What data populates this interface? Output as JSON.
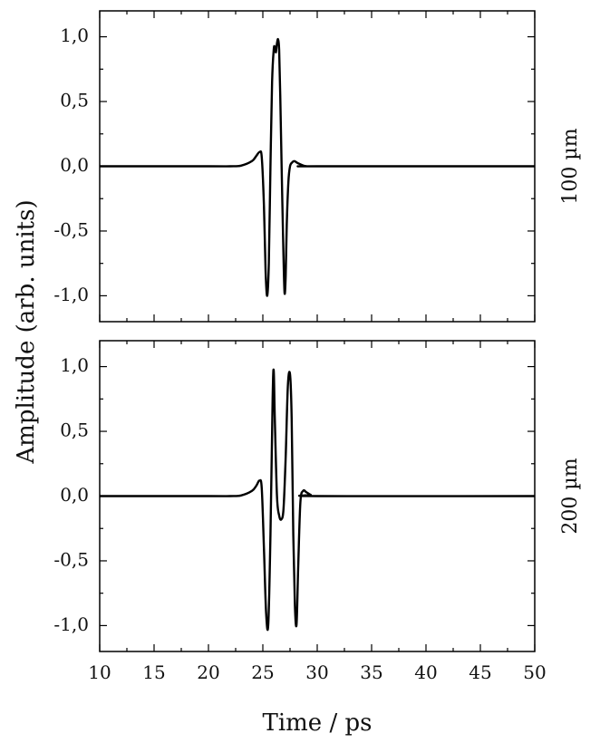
{
  "chart_data": [
    {
      "type": "line",
      "title": "",
      "side_label": "100 µm",
      "xlim": [
        10,
        50
      ],
      "ylim": [
        -1.2,
        1.2
      ],
      "xticks": [
        10,
        15,
        20,
        25,
        30,
        35,
        40,
        45,
        50
      ],
      "yticks": [
        "1,0",
        "0,5",
        "0,0",
        "-0,5",
        "-1,0"
      ],
      "ytick_values": [
        1.0,
        0.5,
        0.0,
        -0.5,
        -1.0
      ],
      "grid": false,
      "series": [
        {
          "x": [
            10,
            20,
            22,
            23,
            24,
            24.4,
            24.7,
            24.9,
            25.1,
            25.25,
            25.4,
            25.55,
            25.7,
            25.85,
            26.0,
            26.1,
            26.2,
            26.3,
            26.4,
            26.5,
            26.6,
            26.75,
            26.9,
            27.0,
            27.1,
            27.2,
            27.35,
            27.5,
            27.7,
            27.9,
            28.2,
            28.6,
            29.0,
            30,
            50
          ],
          "y": [
            0.0,
            0.0,
            0.0,
            0.005,
            0.04,
            0.08,
            0.11,
            0.07,
            -0.3,
            -0.8,
            -1.0,
            -0.75,
            0.0,
            0.65,
            0.9,
            0.92,
            0.88,
            0.95,
            0.98,
            0.9,
            0.55,
            -0.1,
            -0.7,
            -0.98,
            -0.85,
            -0.45,
            -0.12,
            0.0,
            0.03,
            0.04,
            0.025,
            0.01,
            0.0,
            0.0,
            0.0
          ]
        }
      ]
    },
    {
      "type": "line",
      "title": "",
      "side_label": "200 µm",
      "xlabel": "Time / ps",
      "ylabel": "Amplitude (arb. units)",
      "xlim": [
        10,
        50
      ],
      "ylim": [
        -1.2,
        1.2
      ],
      "xticks": [
        10,
        15,
        20,
        25,
        30,
        35,
        40,
        45,
        50
      ],
      "yticks": [
        "1,0",
        "0,5",
        "0,0",
        "-0,5",
        "-1,0"
      ],
      "ytick_values": [
        1.0,
        0.5,
        0.0,
        -0.5,
        -1.0
      ],
      "grid": false,
      "series": [
        {
          "x": [
            10,
            20,
            22,
            23,
            24,
            24.4,
            24.7,
            24.9,
            25.1,
            25.3,
            25.5,
            25.7,
            25.9,
            26.0,
            26.1,
            26.3,
            26.5,
            26.7,
            26.9,
            27.1,
            27.3,
            27.5,
            27.65,
            27.8,
            27.95,
            28.1,
            28.25,
            28.45,
            28.7,
            29.0,
            29.4,
            30,
            50
          ],
          "y": [
            0.0,
            0.0,
            0.0,
            0.005,
            0.04,
            0.08,
            0.12,
            0.06,
            -0.4,
            -0.9,
            -0.99,
            -0.3,
            0.75,
            0.97,
            0.6,
            0.0,
            -0.15,
            -0.18,
            -0.1,
            0.3,
            0.85,
            0.94,
            0.6,
            -0.3,
            -0.85,
            -0.99,
            -0.55,
            -0.05,
            0.04,
            0.03,
            0.01,
            0.0,
            0.0
          ]
        }
      ]
    }
  ]
}
